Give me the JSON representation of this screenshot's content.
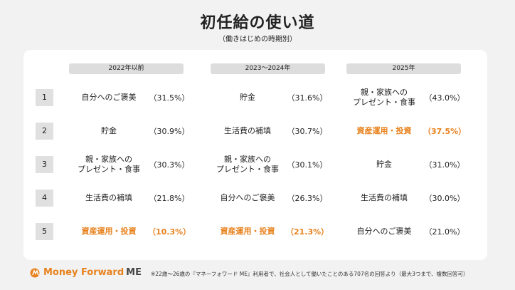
{
  "title": "初任給の使い道",
  "subtitle": "（働きはじめの時期別）",
  "columns": [
    "2022年以前",
    "2023〜2024年",
    "2025年"
  ],
  "ranks": [
    "1",
    "2",
    "3",
    "4",
    "5"
  ],
  "rows": [
    [
      {
        "label": "自分へのご褒美",
        "pct": "（31.5%）",
        "hl": false
      },
      {
        "label": "貯金",
        "pct": "（31.6%）",
        "hl": false
      },
      {
        "label": "親・家族への\nプレゼント・食事",
        "pct": "（43.0%）",
        "hl": false
      }
    ],
    [
      {
        "label": "貯金",
        "pct": "（30.9%）",
        "hl": false
      },
      {
        "label": "生活費の補填",
        "pct": "（30.7%）",
        "hl": false
      },
      {
        "label": "資産運用・投資",
        "pct": "（37.5%）",
        "hl": true
      }
    ],
    [
      {
        "label": "親・家族への\nプレゼント・食事",
        "pct": "（30.3%）",
        "hl": false
      },
      {
        "label": "親・家族への\nプレゼント・食事",
        "pct": "（30.1%）",
        "hl": false
      },
      {
        "label": "貯金",
        "pct": "（31.0%）",
        "hl": false
      }
    ],
    [
      {
        "label": "生活費の補填",
        "pct": "（21.8%）",
        "hl": false
      },
      {
        "label": "自分へのご褒美",
        "pct": "（26.3%）",
        "hl": false
      },
      {
        "label": "生活費の補填",
        "pct": "（30.0%）",
        "hl": false
      }
    ],
    [
      {
        "label": "資産運用・投資",
        "pct": "（10.3%）",
        "hl": true
      },
      {
        "label": "資産運用・投資",
        "pct": "（21.3%）",
        "hl": true
      },
      {
        "label": "自分へのご褒美",
        "pct": "（21.0%）",
        "hl": false
      }
    ]
  ],
  "highlight_color": "#e8821e",
  "logo": {
    "text": "Money Forward",
    "suffix": "ME"
  },
  "footnote": "※22歳〜26歳の『マネーフォワード ME』利用者で、社会人として働いたことのある707名の回答より（最大3つまで、複数回答可）"
}
